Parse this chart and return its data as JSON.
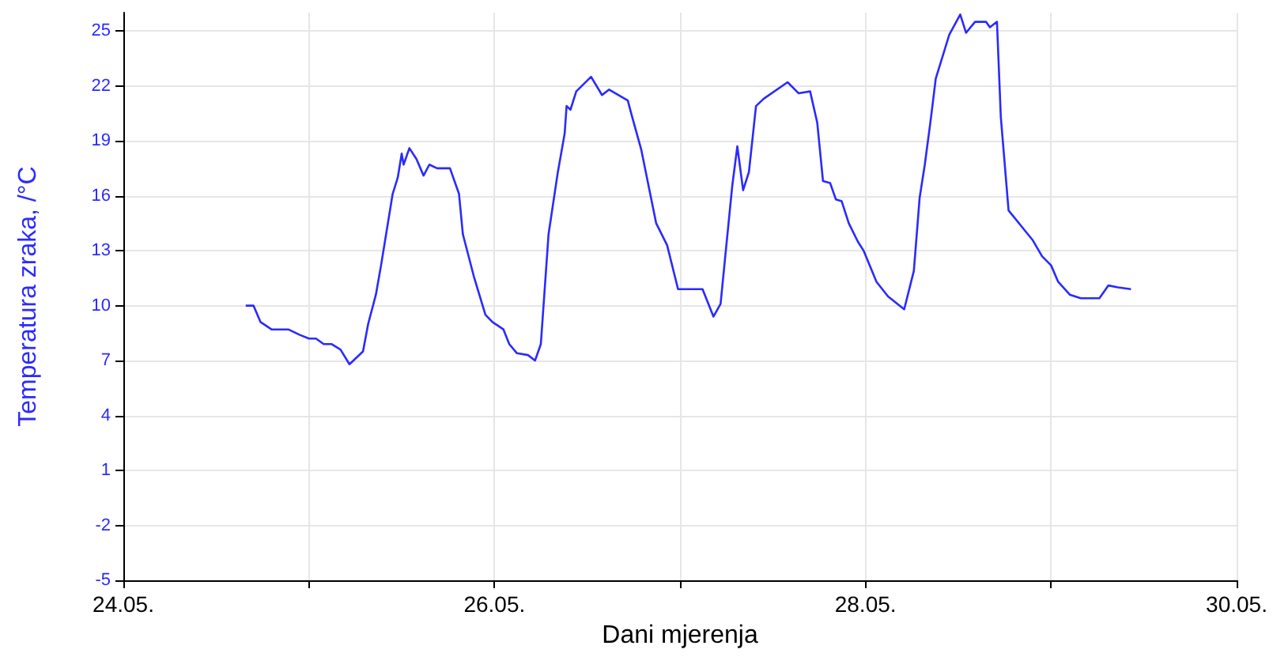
{
  "chart_data": {
    "type": "line",
    "xlabel": "Dani mjerenja",
    "ylabel": "Temperatura zraka, /°C",
    "x": [
      "--05-24T15:50",
      "--05-24T16:50",
      "--05-24T17:45",
      "--05-24T19:10",
      "--05-24T20:25",
      "--05-24T21:20",
      "--05-24T22:50",
      "--05-25T00:00",
      "--05-25T00:55",
      "--05-25T01:55",
      "--05-25T02:55",
      "--05-25T04:05",
      "--05-25T05:15",
      "--05-25T07:00",
      "--05-25T07:40",
      "--05-25T08:40",
      "--05-25T09:20",
      "--05-25T10:50",
      "--05-25T11:30",
      "--05-25T12:00",
      "--05-25T12:15",
      "--05-25T13:00",
      "--05-25T13:55",
      "--05-25T14:50",
      "--05-25T15:35",
      "--05-25T16:35",
      "--05-25T18:15",
      "--05-25T19:25",
      "--05-25T19:55",
      "--05-25T21:20",
      "--05-25T22:50",
      "--05-25T23:45",
      "--05-26T01:10",
      "--05-26T01:55",
      "--05-26T02:55",
      "--05-26T04:20",
      "--05-26T05:15",
      "--05-26T06:00",
      "--05-26T07:00",
      "--05-26T08:10",
      "--05-26T09:05",
      "--05-26T09:20",
      "--05-26T09:50",
      "--05-26T10:35",
      "--05-26T12:30",
      "--05-26T13:55",
      "--05-26T14:50",
      "--05-26T17:15",
      "--05-26T17:45",
      "--05-26T19:00",
      "--05-26T20:55",
      "--05-26T22:20",
      "--05-26T23:45",
      "--05-27T02:55",
      "--05-27T04:20",
      "--05-27T05:15",
      "--05-27T06:00",
      "--05-27T06:45",
      "--05-27T07:25",
      "--05-27T08:10",
      "--05-27T08:55",
      "--05-27T09:50",
      "--05-27T10:50",
      "--05-27T13:55",
      "--05-27T15:20",
      "--05-27T16:50",
      "--05-27T17:45",
      "--05-27T18:30",
      "--05-27T19:25",
      "--05-27T20:10",
      "--05-27T20:55",
      "--05-27T21:50",
      "--05-27T23:00",
      "--05-27T23:45",
      "--05-28T01:25",
      "--05-28T02:55",
      "--05-28T05:00",
      "--05-28T06:15",
      "--05-28T07:00",
      "--05-28T07:40",
      "--05-28T08:25",
      "--05-28T09:05",
      "--05-28T10:50",
      "--05-28T12:15",
      "--05-28T13:00",
      "--05-28T14:10",
      "--05-28T15:35",
      "--05-28T16:05",
      "--05-28T17:00",
      "--05-28T17:30",
      "--05-28T18:30",
      "--05-28T20:25",
      "--05-28T21:35",
      "--05-28T22:50",
      "--05-29T00:00",
      "--05-29T00:55",
      "--05-29T02:25",
      "--05-29T03:50",
      "--05-29T06:15",
      "--05-29T07:25",
      "--05-29T08:40",
      "--05-29T10:20"
    ],
    "series": [
      {
        "color": "#2a2aff",
        "values": [
          10.0,
          10.0,
          9.1,
          8.7,
          8.7,
          8.7,
          8.4,
          8.2,
          8.2,
          7.9,
          7.9,
          7.6,
          6.8,
          7.5,
          9.0,
          10.6,
          12.2,
          16.1,
          17.0,
          18.3,
          17.7,
          18.6,
          18.0,
          17.1,
          17.7,
          17.5,
          17.5,
          16.1,
          13.9,
          11.6,
          9.5,
          9.1,
          8.7,
          7.9,
          7.4,
          7.3,
          7.0,
          7.9,
          13.9,
          17.2,
          19.4,
          20.9,
          20.7,
          21.7,
          22.5,
          21.5,
          21.8,
          21.2,
          20.4,
          18.5,
          14.5,
          13.3,
          10.9,
          10.9,
          9.4,
          10.1,
          13.3,
          16.5,
          18.7,
          16.3,
          17.3,
          20.9,
          21.3,
          22.2,
          21.6,
          21.7,
          20.0,
          16.8,
          16.7,
          15.8,
          15.7,
          14.5,
          13.5,
          13.0,
          11.3,
          10.5,
          9.8,
          11.9,
          15.9,
          17.7,
          20.1,
          22.4,
          24.8,
          25.9,
          24.9,
          25.5,
          25.5,
          25.2,
          25.5,
          20.3,
          15.2,
          14.2,
          13.6,
          12.7,
          12.2,
          11.3,
          10.6,
          10.4,
          10.4,
          11.1,
          11.0,
          10.9
        ]
      }
    ],
    "xlim": [
      "--05-24",
      "--05-30"
    ],
    "xticks": [
      {
        "value": "--05-24",
        "label": "24.05."
      },
      {
        "value": "--05-25",
        "label": null
      },
      {
        "value": "--05-26",
        "label": "26.05."
      },
      {
        "value": "--05-27",
        "label": null
      },
      {
        "value": "--05-28",
        "label": "28.05."
      },
      {
        "value": "--05-29",
        "label": null
      },
      {
        "value": "--05-30",
        "label": "30.05."
      }
    ],
    "ylim": [
      -5,
      26
    ],
    "yticks": [
      -5,
      -2,
      1,
      4,
      7,
      10,
      13,
      16,
      19,
      22,
      25
    ],
    "grid": true,
    "marker": "none",
    "line_style": "solid"
  }
}
